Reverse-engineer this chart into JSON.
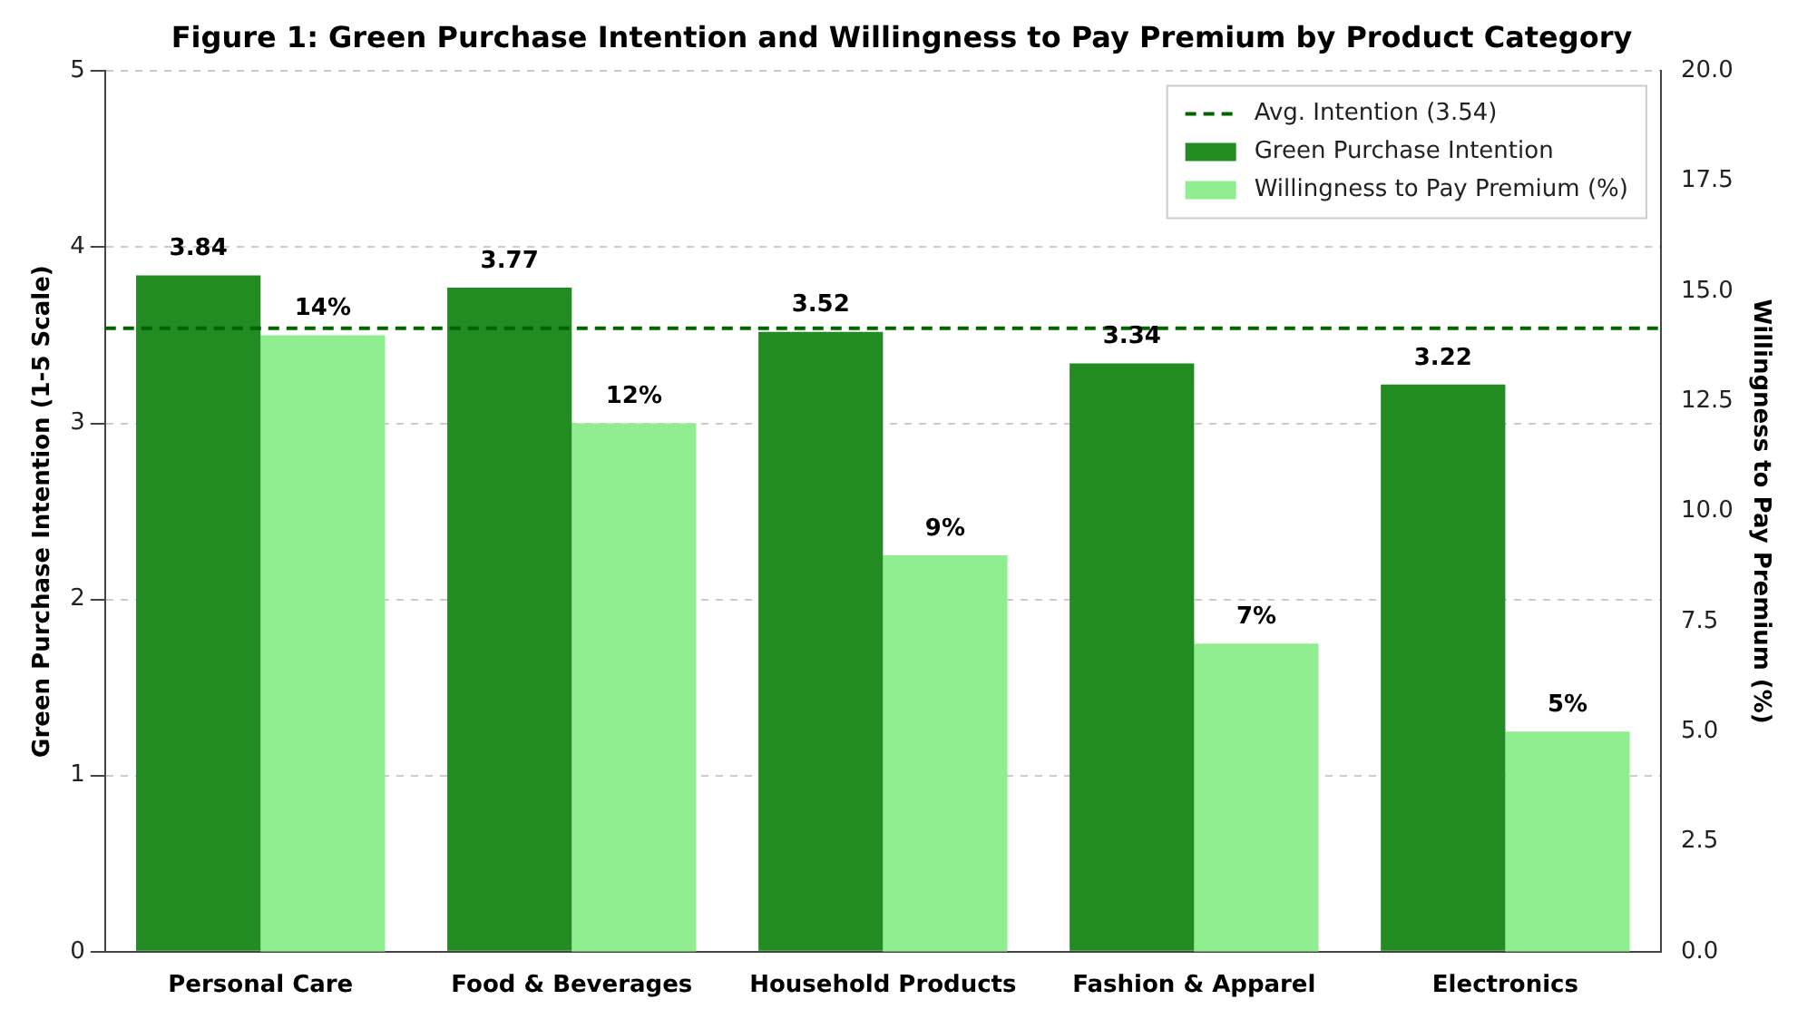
{
  "chart_data": {
    "type": "bar",
    "title": "Figure 1: Green Purchase Intention and Willingness to Pay Premium by Product Category",
    "ylabel": "Green Purchase Intention (1-5 Scale)",
    "y2label": "Willingness to Pay Premium (%)",
    "categories": [
      "Personal Care",
      "Food & Beverages",
      "Household Products",
      "Fashion & Apparel",
      "Electronics"
    ],
    "series": [
      {
        "name": "Green Purchase Intention",
        "color": "#228b22",
        "values": [
          3.84,
          3.77,
          3.52,
          3.34,
          3.22
        ],
        "value_labels": [
          "3.84",
          "3.77",
          "3.52",
          "3.34",
          "3.22"
        ]
      },
      {
        "name": "Willingness to Pay Premium (%)",
        "color": "#90ee90",
        "axis": "y2",
        "values": [
          14,
          12,
          9,
          7,
          5
        ],
        "value_labels": [
          "14%",
          "12%",
          "9%",
          "7%",
          "5%"
        ]
      }
    ],
    "ylim": [
      0,
      5
    ],
    "yticks": [
      0,
      1,
      2,
      3,
      4,
      5
    ],
    "y2lim": [
      0,
      20
    ],
    "y2ticks": [
      {
        "value": 0,
        "label": "0.0"
      },
      {
        "value": 2.5,
        "label": "2.5"
      },
      {
        "value": 5,
        "label": "5.0"
      },
      {
        "value": 7.5,
        "label": "7.5"
      },
      {
        "value": 10,
        "label": "10.0"
      },
      {
        "value": 12.5,
        "label": "12.5"
      },
      {
        "value": 15,
        "label": "15.0"
      },
      {
        "value": 17.5,
        "label": "17.5"
      },
      {
        "value": 20,
        "label": "20.0"
      }
    ],
    "ref_lines": [
      {
        "axis": "y",
        "value": 3.54,
        "label": "Avg. Intention (3.54)",
        "color": "#006400",
        "line_style": "dashed"
      }
    ],
    "grid": "y",
    "legend": "top right"
  }
}
